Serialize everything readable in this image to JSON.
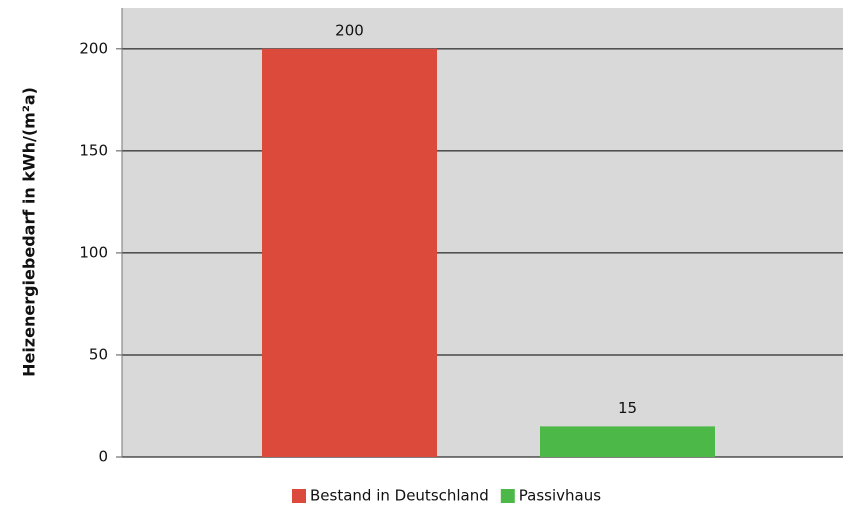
{
  "chart_data": {
    "type": "bar",
    "y_label": "Heizenergiebedarf in kWh/(m²a)",
    "categories": [
      null
    ],
    "series": [
      {
        "name": "Bestand in Deutschland",
        "color": "#dc4a3b",
        "values": [
          200
        ]
      },
      {
        "name": "Passivhaus",
        "color": "#4cb848",
        "values": [
          15
        ]
      }
    ],
    "ylim": [
      0,
      220
    ],
    "yticks": [
      0,
      50,
      100,
      150,
      200
    ],
    "grid": true,
    "legend": "bottom"
  }
}
